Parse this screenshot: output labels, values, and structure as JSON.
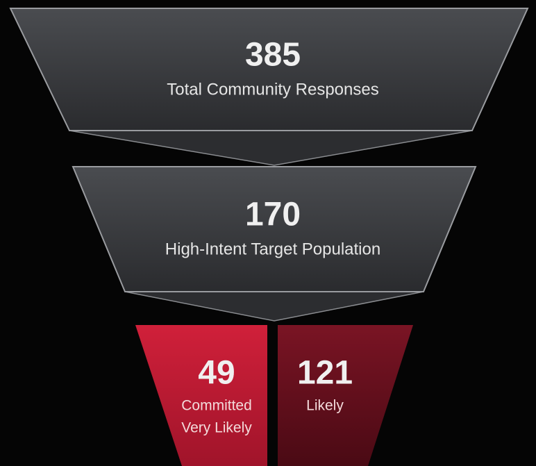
{
  "stages": [
    {
      "value": "385",
      "label": "Total Community Responses"
    },
    {
      "value": "170",
      "label": "High-Intent Target Population"
    }
  ],
  "split": [
    {
      "value": "49",
      "lines": [
        "Committed",
        "Very Likely"
      ]
    },
    {
      "value": "121",
      "lines": [
        "Likely"
      ]
    }
  ]
}
